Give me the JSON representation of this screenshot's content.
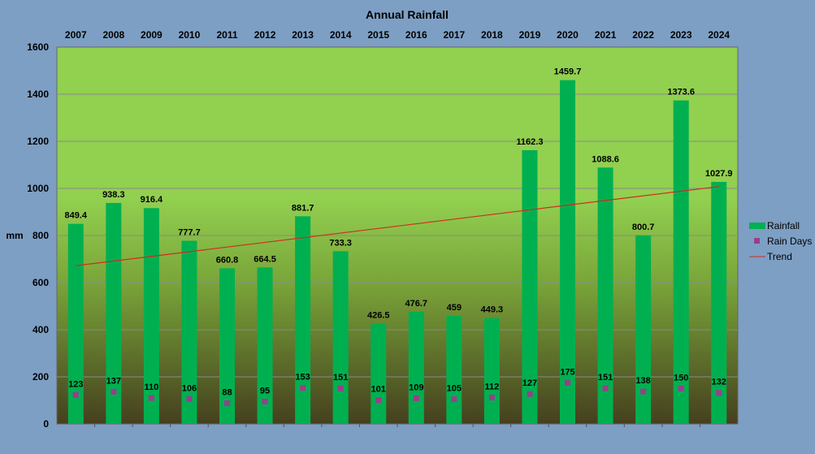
{
  "chart_data": {
    "type": "bar",
    "title": "Annual Rainfall",
    "ylabel": "mm",
    "xlabel": "",
    "ylim": [
      0,
      1600
    ],
    "yticks": [
      0,
      200,
      400,
      600,
      800,
      1000,
      1200,
      1400,
      1600
    ],
    "grid": true,
    "legend_position": "right",
    "categories": [
      "2007",
      "2008",
      "2009",
      "2010",
      "2011",
      "2012",
      "2013",
      "2014",
      "2015",
      "2016",
      "2017",
      "2018",
      "2019",
      "2020",
      "2021",
      "2022",
      "2023",
      "2024"
    ],
    "series": [
      {
        "name": "Rainfall",
        "type": "bar",
        "color": "#00b050",
        "values": [
          849.4,
          938.3,
          916.4,
          777.7,
          660.8,
          664.5,
          881.7,
          733.3,
          426.5,
          476.7,
          459,
          449.3,
          1162.3,
          1459.7,
          1088.6,
          800.7,
          1373.6,
          1027.9
        ],
        "labels": [
          "849.4",
          "938.3",
          "916.4",
          "777.7",
          "660.8",
          "664.5",
          "881.7",
          "733.3",
          "426.5",
          "476.7",
          "459",
          "449.3",
          "1162.3",
          "1459.7",
          "1088.6",
          "800.7",
          "1373.6",
          "1027.9"
        ]
      },
      {
        "name": "Rain Days",
        "type": "scatter",
        "color": "#9b3d8f",
        "values": [
          123,
          137,
          110,
          106,
          88,
          95,
          153,
          151,
          101,
          109,
          105,
          112,
          127,
          175,
          151,
          138,
          150,
          132
        ],
        "labels": [
          "123",
          "137",
          "110",
          "106",
          "88",
          "95",
          "153",
          "151",
          "101",
          "109",
          "105",
          "112",
          "127",
          "175",
          "151",
          "138",
          "150",
          "132"
        ]
      },
      {
        "name": "Trend",
        "type": "line",
        "color": "#d42a1e",
        "start": 672,
        "end": 1008
      }
    ],
    "plot_background": {
      "top": "#92d050",
      "middle": "#7aa63a",
      "bottom": "#45401e"
    }
  }
}
